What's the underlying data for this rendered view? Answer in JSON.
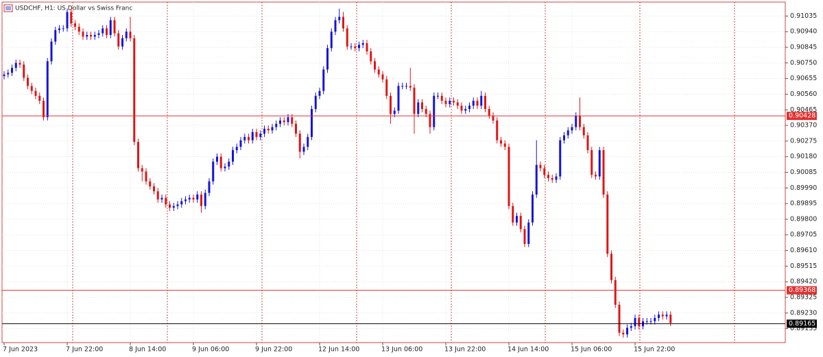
{
  "chart_data": {
    "type": "candlestick",
    "title": "USDCHF, H1:  US Dollar vs Swiss Franc",
    "up_color": "#1414d8",
    "down_color": "#e01414",
    "grid": true,
    "categories": [
      "7 Jun 2023",
      null,
      null,
      null,
      null,
      null,
      null,
      null,
      null,
      null,
      null,
      null,
      null,
      null,
      null,
      null,
      "7 Jun 22:00",
      null,
      null,
      null,
      null,
      null,
      null,
      null,
      null,
      null,
      null,
      null,
      null,
      null,
      null,
      null,
      "8 Jun 14:00",
      null,
      null,
      null,
      null,
      null,
      null,
      null,
      null,
      null,
      null,
      null,
      null,
      null,
      null,
      null,
      "9 Jun 06:00",
      null,
      null,
      null,
      null,
      null,
      null,
      null,
      null,
      null,
      null,
      null,
      null,
      null,
      null,
      null,
      "9 Jun 22:00",
      null,
      null,
      null,
      null,
      null,
      null,
      null,
      null,
      null,
      null,
      null,
      null,
      null,
      null,
      null,
      "12 Jun 14:00",
      null,
      null,
      null,
      null,
      null,
      null,
      null,
      null,
      null,
      null,
      null,
      null,
      null,
      null,
      null,
      "13 Jun 06:00",
      null,
      null,
      null,
      null,
      null,
      null,
      null,
      null,
      null,
      null,
      null,
      null,
      null,
      null,
      null,
      "13 Jun 22:00",
      null,
      null,
      null,
      null,
      null,
      null,
      null,
      null,
      null,
      null,
      null,
      null,
      null,
      null,
      null,
      "14 Jun 14:00",
      null,
      null,
      null,
      null,
      null,
      null,
      null,
      null,
      null,
      null,
      null,
      null,
      null,
      null,
      null,
      "15 Jun 06:00",
      null,
      null,
      null,
      null,
      null,
      null,
      null,
      null,
      null,
      null,
      null,
      null,
      null,
      null,
      null,
      "15 Jun 22:00",
      null,
      null,
      null,
      null,
      null,
      null,
      null,
      null,
      null
    ],
    "open": [
      0.9067,
      0.9068,
      0.9069,
      0.9072,
      0.9075,
      0.9074,
      0.9066,
      0.9061,
      0.9058,
      0.9055,
      0.9052,
      0.9042,
      0.9076,
      0.9088,
      0.9095,
      0.9096,
      0.9096,
      0.9106,
      0.9099,
      0.9097,
      0.9094,
      0.9091,
      0.9092,
      0.9091,
      0.9092,
      0.9093,
      0.9096,
      0.9092,
      0.9101,
      0.9093,
      0.9085,
      0.909,
      0.9094,
      0.909,
      0.9027,
      0.9011,
      0.9009,
      0.9003,
      0.9,
      0.8997,
      0.8992,
      0.8993,
      0.8989,
      0.8987,
      0.8988,
      0.8989,
      0.8991,
      0.8992,
      0.8993,
      0.8992,
      0.8995,
      0.8988,
      0.8996,
      0.9003,
      0.9015,
      0.9018,
      0.9011,
      0.9012,
      0.9015,
      0.9022,
      0.9024,
      0.9028,
      0.903,
      0.9028,
      0.9033,
      0.903,
      0.9032,
      0.9035,
      0.9034,
      0.9036,
      0.9038,
      0.904,
      0.9039,
      0.9042,
      0.9038,
      0.9032,
      0.9021,
      0.9024,
      0.903,
      0.9047,
      0.9055,
      0.9058,
      0.9071,
      0.9084,
      0.9094,
      0.9101,
      0.9103,
      0.9096,
      0.9085,
      0.9085,
      0.9084,
      0.9086,
      0.9087,
      0.9082,
      0.9076,
      0.9071,
      0.9068,
      0.9065,
      0.9055,
      0.9044,
      0.9046,
      0.9061,
      0.9061,
      0.9061,
      0.906,
      0.9044,
      0.9051,
      0.9047,
      0.9044,
      0.9036,
      0.9055,
      0.9055,
      0.9052,
      0.905,
      0.9052,
      0.9051,
      0.9049,
      0.9046,
      0.9047,
      0.9049,
      0.9052,
      0.9049,
      0.9055,
      0.9047,
      0.9043,
      0.904,
      0.9028,
      0.9026,
      0.9024,
      0.8988,
      0.8978,
      0.8982,
      0.8974,
      0.8965,
      0.8978,
      0.8995,
      0.9013,
      0.9011,
      0.9007,
      0.9005,
      0.9004,
      0.9006,
      0.9028,
      0.9031,
      0.9034,
      0.9036,
      0.9043,
      0.9036,
      0.9031,
      0.9022,
      0.9007,
      0.9006,
      0.9022,
      0.8995,
      0.8959,
      0.8943,
      0.8928,
      0.8911,
      0.891,
      0.8914,
      0.8915,
      0.892,
      0.8915,
      0.8918,
      0.8918,
      0.8918,
      0.892,
      0.8922,
      0.8921,
      0.8922
    ],
    "high": [
      0.907,
      0.9071,
      0.9074,
      0.9077,
      0.9077,
      0.9076,
      0.9068,
      0.9063,
      0.906,
      0.9057,
      0.9054,
      0.9078,
      0.909,
      0.9097,
      0.9098,
      0.9098,
      0.9108,
      0.9108,
      0.9101,
      0.9099,
      0.9096,
      0.9094,
      0.9094,
      0.9094,
      0.9095,
      0.9098,
      0.9098,
      0.9103,
      0.9103,
      0.9095,
      0.9092,
      0.9096,
      0.9103,
      0.9092,
      0.9029,
      0.9013,
      0.9011,
      0.9005,
      0.9002,
      0.8999,
      0.8995,
      0.8995,
      0.8991,
      0.899,
      0.8991,
      0.8993,
      0.8994,
      0.8995,
      0.8995,
      0.8997,
      0.8997,
      0.8998,
      0.9005,
      0.9017,
      0.902,
      0.902,
      0.9014,
      0.9017,
      0.9024,
      0.9026,
      0.903,
      0.9032,
      0.9032,
      0.9035,
      0.9035,
      0.9034,
      0.9037,
      0.9037,
      0.9038,
      0.904,
      0.9042,
      0.9042,
      0.9044,
      0.9044,
      0.904,
      0.9034,
      0.9026,
      0.9032,
      0.9049,
      0.9057,
      0.906,
      0.9073,
      0.9086,
      0.9096,
      0.9103,
      0.9108,
      0.9106,
      0.9098,
      0.9087,
      0.9087,
      0.9088,
      0.9089,
      0.9089,
      0.9084,
      0.9078,
      0.9073,
      0.907,
      0.9067,
      0.9057,
      0.9048,
      0.9063,
      0.9063,
      0.9063,
      0.9072,
      0.9062,
      0.9053,
      0.9053,
      0.9049,
      0.9046,
      0.9057,
      0.9057,
      0.9057,
      0.9054,
      0.9054,
      0.9054,
      0.9053,
      0.9051,
      0.9049,
      0.9051,
      0.9054,
      0.9054,
      0.9058,
      0.9057,
      0.9049,
      0.9045,
      0.9042,
      0.903,
      0.9028,
      0.9026,
      0.899,
      0.8984,
      0.8984,
      0.8976,
      0.898,
      0.8997,
      0.9028,
      0.9015,
      0.9013,
      0.9009,
      0.9007,
      0.9008,
      0.903,
      0.9033,
      0.9036,
      0.9038,
      0.9045,
      0.9054,
      0.9038,
      0.9033,
      0.9024,
      0.9009,
      0.9024,
      0.9024,
      0.8997,
      0.8961,
      0.8945,
      0.893,
      0.8913,
      0.8916,
      0.8917,
      0.8922,
      0.8922,
      0.892,
      0.892,
      0.892,
      0.8922,
      0.8924,
      0.8924,
      0.8924,
      0.8924
    ],
    "low": [
      0.9065,
      0.9066,
      0.9067,
      0.907,
      0.9072,
      0.9064,
      0.9059,
      0.9056,
      0.9053,
      0.905,
      0.904,
      0.904,
      0.9074,
      0.9086,
      0.9093,
      0.9094,
      0.9094,
      0.9097,
      0.9095,
      0.9092,
      0.9089,
      0.9089,
      0.9089,
      0.9089,
      0.909,
      0.9091,
      0.909,
      0.909,
      0.9091,
      0.9083,
      0.9083,
      0.9088,
      0.9088,
      0.9025,
      0.9009,
      0.9003,
      0.9001,
      0.8998,
      0.8995,
      0.899,
      0.899,
      0.8987,
      0.8985,
      0.8985,
      0.8986,
      0.8987,
      0.8989,
      0.899,
      0.899,
      0.899,
      0.8984,
      0.8986,
      0.8994,
      0.9001,
      0.9013,
      0.9009,
      0.9009,
      0.901,
      0.9013,
      0.902,
      0.9022,
      0.9026,
      0.9026,
      0.9026,
      0.9028,
      0.9028,
      0.903,
      0.9032,
      0.9032,
      0.9034,
      0.9036,
      0.9037,
      0.9037,
      0.9036,
      0.903,
      0.9017,
      0.9019,
      0.9022,
      0.9028,
      0.9045,
      0.9053,
      0.9056,
      0.9069,
      0.9082,
      0.9092,
      0.9099,
      0.9094,
      0.9083,
      0.9083,
      0.9082,
      0.9082,
      0.9084,
      0.908,
      0.9074,
      0.9069,
      0.9066,
      0.9063,
      0.9053,
      0.9038,
      0.9042,
      0.9044,
      0.9059,
      0.9059,
      0.9058,
      0.9032,
      0.9042,
      0.9045,
      0.9042,
      0.9032,
      0.9034,
      0.9053,
      0.905,
      0.9048,
      0.9048,
      0.9049,
      0.9047,
      0.9044,
      0.9044,
      0.9045,
      0.9047,
      0.9047,
      0.9047,
      0.9045,
      0.9041,
      0.9038,
      0.9026,
      0.9024,
      0.9022,
      0.8986,
      0.8976,
      0.8976,
      0.8972,
      0.8963,
      0.8963,
      0.8976,
      0.8993,
      0.9009,
      0.9005,
      0.9003,
      0.9002,
      0.9002,
      0.9004,
      0.9026,
      0.9029,
      0.9032,
      0.9034,
      0.9034,
      0.9029,
      0.902,
      0.9005,
      0.9004,
      0.9004,
      0.8993,
      0.8957,
      0.8941,
      0.8926,
      0.8909,
      0.8908,
      0.8908,
      0.8912,
      0.8913,
      0.8913,
      0.8913,
      0.8916,
      0.8916,
      0.8916,
      0.8918,
      0.8919,
      0.8919,
      0.8915
    ],
    "close": [
      0.9068,
      0.9069,
      0.9072,
      0.9075,
      0.9074,
      0.9066,
      0.9061,
      0.9058,
      0.9055,
      0.9052,
      0.9042,
      0.9076,
      0.9088,
      0.9095,
      0.9096,
      0.9096,
      0.9106,
      0.9099,
      0.9097,
      0.9094,
      0.9091,
      0.9092,
      0.9091,
      0.9092,
      0.9093,
      0.9096,
      0.9092,
      0.9101,
      0.9093,
      0.9085,
      0.909,
      0.9094,
      0.909,
      0.9027,
      0.9011,
      0.9009,
      0.9003,
      0.9,
      0.8997,
      0.8992,
      0.8993,
      0.8989,
      0.8987,
      0.8988,
      0.8989,
      0.8991,
      0.8992,
      0.8993,
      0.8992,
      0.8995,
      0.8988,
      0.8996,
      0.9003,
      0.9015,
      0.9018,
      0.9011,
      0.9012,
      0.9015,
      0.9022,
      0.9024,
      0.9028,
      0.903,
      0.9028,
      0.9033,
      0.903,
      0.9032,
      0.9035,
      0.9034,
      0.9036,
      0.9038,
      0.904,
      0.9039,
      0.9042,
      0.9038,
      0.9032,
      0.9021,
      0.9024,
      0.903,
      0.9047,
      0.9055,
      0.9058,
      0.9071,
      0.9084,
      0.9094,
      0.9101,
      0.9103,
      0.9096,
      0.9085,
      0.9085,
      0.9084,
      0.9086,
      0.9087,
      0.9082,
      0.9076,
      0.9071,
      0.9068,
      0.9065,
      0.9055,
      0.9044,
      0.9046,
      0.9061,
      0.9061,
      0.9061,
      0.906,
      0.9044,
      0.9051,
      0.9047,
      0.9044,
      0.9036,
      0.9055,
      0.9055,
      0.9052,
      0.905,
      0.9052,
      0.9051,
      0.9049,
      0.9046,
      0.9047,
      0.9049,
      0.9052,
      0.9049,
      0.9055,
      0.9047,
      0.9043,
      0.904,
      0.9028,
      0.9026,
      0.9024,
      0.8988,
      0.8978,
      0.8982,
      0.8974,
      0.8965,
      0.8978,
      0.8995,
      0.9013,
      0.9011,
      0.9007,
      0.9005,
      0.9004,
      0.9006,
      0.9028,
      0.9031,
      0.9034,
      0.9036,
      0.9043,
      0.9036,
      0.9031,
      0.9022,
      0.9007,
      0.9006,
      0.9022,
      0.8995,
      0.8959,
      0.8943,
      0.8928,
      0.8911,
      0.891,
      0.8914,
      0.8915,
      0.892,
      0.8915,
      0.8918,
      0.8918,
      0.8918,
      0.892,
      0.8922,
      0.8921,
      0.8922,
      0.8917
    ],
    "ylim": [
      0.8905,
      0.9112
    ],
    "yticks": [
      0.91035,
      {
        "value": 0.9094,
        "label": "0.90940"
      },
      0.90845,
      {
        "value": 0.9075,
        "label": "0.90750"
      },
      0.90655,
      {
        "value": 0.9056,
        "label": "0.90560"
      },
      0.90465,
      {
        "value": 0.9037,
        "label": "0.90370"
      },
      0.90275,
      {
        "value": 0.9018,
        "label": "0.90180"
      },
      0.90085,
      {
        "value": 0.8999,
        "label": "0.89990"
      },
      0.89895,
      {
        "value": 0.898,
        "label": "0.89800"
      },
      0.89705,
      {
        "value": 0.8961,
        "label": "0.89610"
      },
      0.89515,
      {
        "value": 0.8942,
        "label": "0.89420"
      },
      0.89325,
      {
        "value": 0.8923,
        "label": "0.89230"
      },
      0.89135
    ],
    "price_lines": [
      {
        "value": 0.90428,
        "color": "#e03030"
      },
      {
        "value": 0.89368,
        "color": "#e03030"
      },
      {
        "value": 0.89165,
        "color": "#000000"
      }
    ]
  }
}
